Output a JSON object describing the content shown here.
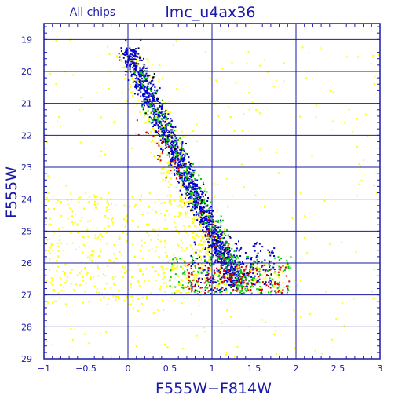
{
  "chart_data": {
    "type": "scatter",
    "title": "lmc_u4ax36",
    "subtitle": "All chips",
    "xlabel": "F555W−F814W",
    "ylabel": "F555W",
    "xlim": [
      -1,
      3
    ],
    "ylim": [
      29,
      18.5
    ],
    "y_inverted": true,
    "grid": true,
    "x_ticks": [
      -1,
      -0.5,
      0,
      0.5,
      1,
      1.5,
      2,
      2.5,
      3
    ],
    "x_tick_labels": [
      "−1",
      "−0.5",
      "0",
      "0.5",
      "1",
      "1.5",
      "2",
      "2.5",
      "3"
    ],
    "y_ticks": [
      19,
      20,
      21,
      22,
      23,
      24,
      25,
      26,
      27,
      28,
      29
    ],
    "y_tick_labels": [
      "19",
      "20",
      "21",
      "22",
      "23",
      "24",
      "25",
      "26",
      "27",
      "28",
      "29"
    ],
    "colors": {
      "axes": "#1a1aa6",
      "yellow": "#ffff00",
      "blue": "#0000d0",
      "green": "#00d000",
      "red": "#e00000",
      "black": "#000000"
    },
    "series": [
      {
        "color_key": "yellow",
        "components": [
          {
            "kind": "sequence",
            "n": 480,
            "color_start": 0.0,
            "color_end": 1.2,
            "mag_start": 19.4,
            "mag_end": 26.8,
            "width": 0.2
          },
          {
            "kind": "field",
            "n": 420,
            "x_range": [
              -1.0,
              0.9
            ],
            "y_range": [
              23.8,
              27.3
            ]
          },
          {
            "kind": "field",
            "n": 260,
            "x_range": [
              -1.0,
              3.0
            ],
            "y_range": [
              19.0,
              29.0
            ]
          },
          {
            "kind": "clump",
            "n": 150,
            "x_range": [
              0.4,
              1.9
            ],
            "y_range": [
              26.0,
              27.0
            ]
          }
        ]
      },
      {
        "color_key": "blue",
        "components": [
          {
            "kind": "sequence",
            "n": 1300,
            "color_start": 0.0,
            "color_end": 1.3,
            "mag_start": 19.3,
            "mag_end": 26.7,
            "width": 0.13
          },
          {
            "kind": "clump",
            "n": 220,
            "x_range": [
              0.75,
              1.75
            ],
            "y_range": [
              25.3,
              26.9
            ]
          }
        ]
      },
      {
        "color_key": "green",
        "components": [
          {
            "kind": "sequence",
            "n": 260,
            "color_start": 0.1,
            "color_end": 1.4,
            "mag_start": 20.0,
            "mag_end": 26.8,
            "width": 0.15
          },
          {
            "kind": "clump",
            "n": 200,
            "x_range": [
              0.5,
              1.95
            ],
            "y_range": [
              25.8,
              27.0
            ]
          }
        ]
      },
      {
        "color_key": "red",
        "components": [
          {
            "kind": "sequence",
            "n": 70,
            "color_start": 0.2,
            "color_end": 1.4,
            "mag_start": 21.5,
            "mag_end": 26.8,
            "width": 0.15
          },
          {
            "kind": "clump",
            "n": 140,
            "x_range": [
              0.7,
              1.95
            ],
            "y_range": [
              26.0,
              27.0
            ]
          }
        ]
      },
      {
        "color_key": "black",
        "components": [
          {
            "kind": "sequence",
            "n": 40,
            "color_start": 0.0,
            "color_end": 1.3,
            "mag_start": 19.0,
            "mag_end": 26.5,
            "width": 0.15
          }
        ]
      }
    ]
  }
}
